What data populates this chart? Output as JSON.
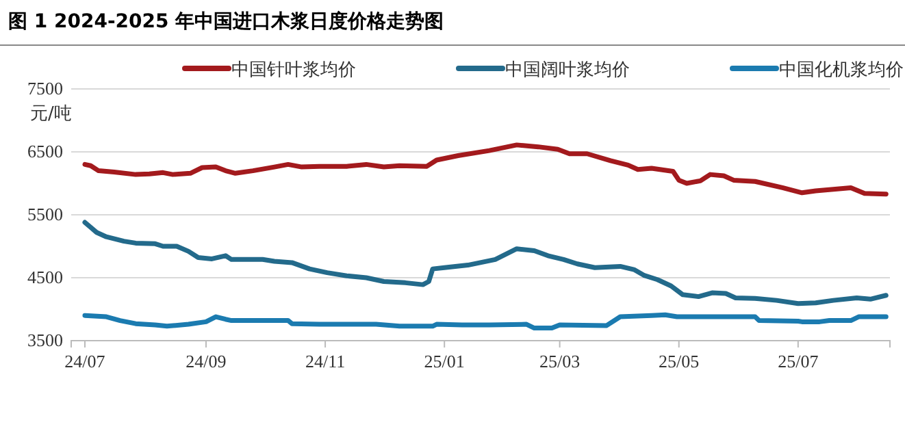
{
  "chart_data": {
    "type": "line",
    "title": "图 1 2024-2025 年中国进口木浆日度价格走势图",
    "ylabel": "元/吨",
    "xlim": [
      "2024-06-24",
      "2025-08-17"
    ],
    "xticks": [
      {
        "value": "2024-07-01",
        "label": "24/07"
      },
      {
        "value": "2024-09-01",
        "label": "24/09"
      },
      {
        "value": "2024-11-01",
        "label": "24/11"
      },
      {
        "value": "2025-01-01",
        "label": "25/01"
      },
      {
        "value": "2025-03-01",
        "label": "25/03"
      },
      {
        "value": "2025-05-01",
        "label": "25/05"
      },
      {
        "value": "2025-07-01",
        "label": "25/07"
      }
    ],
    "ylim": [
      3500,
      7500
    ],
    "yticks": [
      3500,
      4500,
      5500,
      6500,
      7500
    ],
    "grid": "y",
    "legend": "top",
    "line_style": "solid",
    "marker": "none",
    "series": [
      {
        "name": "中国针叶浆均价",
        "color": "#a31a1d",
        "x": [
          "2024-07-01",
          "2024-07-04",
          "2024-07-08",
          "2024-07-16",
          "2024-07-27",
          "2024-08-03",
          "2024-08-10",
          "2024-08-15",
          "2024-08-24",
          "2024-08-30",
          "2024-09-06",
          "2024-09-11",
          "2024-09-16",
          "2024-09-25",
          "2024-10-06",
          "2024-10-13",
          "2024-10-20",
          "2024-10-29",
          "2024-11-12",
          "2024-11-22",
          "2024-12-01",
          "2024-12-09",
          "2024-12-23",
          "2024-12-28",
          "2025-01-08",
          "2025-01-24",
          "2025-02-07",
          "2025-02-18",
          "2025-02-28",
          "2025-03-06",
          "2025-03-15",
          "2025-03-27",
          "2025-04-05",
          "2025-04-10",
          "2025-04-17",
          "2025-04-28",
          "2025-05-01",
          "2025-05-05",
          "2025-05-12",
          "2025-05-17",
          "2025-05-24",
          "2025-05-29",
          "2025-06-09",
          "2025-06-23",
          "2025-07-03",
          "2025-07-10",
          "2025-07-21",
          "2025-07-28",
          "2025-08-04",
          "2025-08-15"
        ],
        "values": [
          6300,
          6280,
          6200,
          6180,
          6140,
          6150,
          6170,
          6140,
          6160,
          6250,
          6260,
          6200,
          6160,
          6200,
          6260,
          6300,
          6260,
          6270,
          6270,
          6300,
          6260,
          6280,
          6270,
          6370,
          6440,
          6520,
          6610,
          6580,
          6540,
          6470,
          6470,
          6360,
          6290,
          6220,
          6240,
          6190,
          6050,
          6000,
          6040,
          6140,
          6120,
          6050,
          6030,
          5930,
          5850,
          5880,
          5910,
          5930,
          5840,
          5830
        ]
      },
      {
        "name": "中国阔叶浆均价",
        "color": "#236a8b",
        "x": [
          "2024-07-01",
          "2024-07-04",
          "2024-07-07",
          "2024-07-12",
          "2024-07-21",
          "2024-07-27",
          "2024-08-06",
          "2024-08-10",
          "2024-08-17",
          "2024-08-23",
          "2024-08-28",
          "2024-09-04",
          "2024-09-11",
          "2024-09-14",
          "2024-09-30",
          "2024-10-06",
          "2024-10-15",
          "2024-10-24",
          "2024-11-02",
          "2024-11-12",
          "2024-11-22",
          "2024-12-01",
          "2024-12-12",
          "2024-12-21",
          "2024-12-24",
          "2024-12-26",
          "2025-01-01",
          "2025-01-13",
          "2025-01-27",
          "2025-02-07",
          "2025-02-16",
          "2025-02-23",
          "2025-03-03",
          "2025-03-10",
          "2025-03-19",
          "2025-04-01",
          "2025-04-08",
          "2025-04-13",
          "2025-04-20",
          "2025-04-27",
          "2025-05-03",
          "2025-05-11",
          "2025-05-18",
          "2025-05-25",
          "2025-05-30",
          "2025-06-09",
          "2025-06-20",
          "2025-07-01",
          "2025-07-10",
          "2025-07-19",
          "2025-07-31",
          "2025-08-07",
          "2025-08-15"
        ],
        "values": [
          5380,
          5300,
          5220,
          5150,
          5080,
          5050,
          5040,
          5000,
          5000,
          4920,
          4820,
          4800,
          4850,
          4790,
          4790,
          4760,
          4740,
          4640,
          4580,
          4530,
          4500,
          4440,
          4420,
          4390,
          4440,
          4640,
          4660,
          4700,
          4790,
          4960,
          4930,
          4850,
          4790,
          4720,
          4660,
          4680,
          4630,
          4540,
          4470,
          4370,
          4230,
          4200,
          4260,
          4250,
          4180,
          4170,
          4140,
          4090,
          4100,
          4140,
          4180,
          4160,
          4220
        ]
      },
      {
        "name": "中国化机浆均价",
        "color": "#1b7bb0",
        "x": [
          "2024-07-01",
          "2024-07-12",
          "2024-07-19",
          "2024-07-27",
          "2024-08-06",
          "2024-08-12",
          "2024-08-23",
          "2024-09-01",
          "2024-09-06",
          "2024-09-11",
          "2024-09-14",
          "2024-10-13",
          "2024-10-15",
          "2024-10-29",
          "2024-11-27",
          "2024-12-09",
          "2024-12-26",
          "2024-12-28",
          "2025-01-10",
          "2025-01-24",
          "2025-02-12",
          "2025-02-16",
          "2025-02-25",
          "2025-03-01",
          "2025-03-25",
          "2025-04-01",
          "2025-04-17",
          "2025-04-24",
          "2025-04-30",
          "2025-06-09",
          "2025-06-11",
          "2025-07-01",
          "2025-07-03",
          "2025-07-12",
          "2025-07-17",
          "2025-07-28",
          "2025-08-01",
          "2025-08-15"
        ],
        "values": [
          3900,
          3880,
          3820,
          3770,
          3750,
          3730,
          3760,
          3800,
          3880,
          3840,
          3820,
          3820,
          3770,
          3760,
          3760,
          3730,
          3730,
          3760,
          3750,
          3750,
          3760,
          3700,
          3700,
          3750,
          3740,
          3880,
          3900,
          3910,
          3880,
          3880,
          3820,
          3810,
          3800,
          3800,
          3820,
          3820,
          3880,
          3880
        ]
      }
    ]
  }
}
